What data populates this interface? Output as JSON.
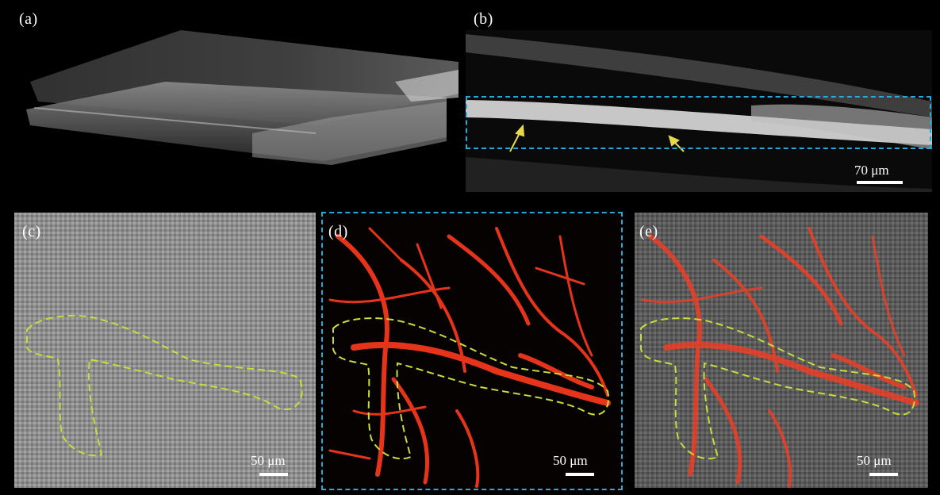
{
  "panels": {
    "a": {
      "label": "(a)"
    },
    "b": {
      "label": "(b)",
      "scale_text": "70 μm"
    },
    "c": {
      "label": "(c)",
      "scale_text": "50 μm"
    },
    "d": {
      "label": "(d)",
      "scale_text": "50 μm"
    },
    "e": {
      "label": "(e)",
      "scale_text": "50 μm"
    }
  },
  "colors": {
    "background": "#000000",
    "roi_dashed_outline": "#2aa8d8",
    "vessel_outline": "#c8dc3c",
    "arrow": "#e8d84a",
    "vessel_red": "#ff3a1e",
    "scale_bar": "#ffffff"
  }
}
